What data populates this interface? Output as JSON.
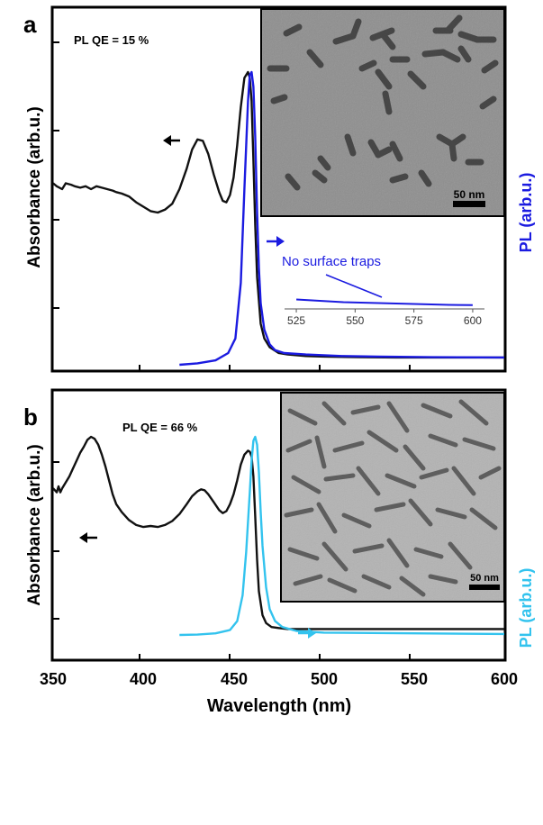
{
  "figure": {
    "xlabel": "Wavelength (nm)",
    "x_ticks": [
      "350",
      "400",
      "450",
      "500",
      "550",
      "600"
    ]
  },
  "chart_data": [
    {
      "panel": "a",
      "type": "line",
      "annotation": "PL QE = 15 %",
      "ylabel_left": "Absorbance (arb.u.)",
      "ylabel_right": "PL (arb.u.)",
      "xlim": [
        350,
        600
      ],
      "colors": {
        "absorbance": "#111111",
        "pl": "#1b1be0"
      },
      "series": [
        {
          "name": "",
          "role": "absorbance",
          "points": [
            [
              350,
              0.62
            ],
            [
              352,
              0.61
            ],
            [
              355,
              0.6
            ],
            [
              357,
              0.62
            ],
            [
              360,
              0.615
            ],
            [
              362,
              0.61
            ],
            [
              365,
              0.605
            ],
            [
              368,
              0.61
            ],
            [
              371,
              0.6
            ],
            [
              374,
              0.61
            ],
            [
              377,
              0.605
            ],
            [
              380,
              0.6
            ],
            [
              383,
              0.595
            ],
            [
              385,
              0.59
            ],
            [
              388,
              0.585
            ],
            [
              392,
              0.575
            ],
            [
              396,
              0.555
            ],
            [
              400,
              0.54
            ],
            [
              404,
              0.525
            ],
            [
              408,
              0.52
            ],
            [
              412,
              0.53
            ],
            [
              416,
              0.55
            ],
            [
              420,
              0.6
            ],
            [
              424,
              0.67
            ],
            [
              427,
              0.735
            ],
            [
              430,
              0.77
            ],
            [
              433,
              0.765
            ],
            [
              436,
              0.72
            ],
            [
              439,
              0.65
            ],
            [
              442,
              0.59
            ],
            [
              444,
              0.56
            ],
            [
              446,
              0.555
            ],
            [
              448,
              0.58
            ],
            [
              450,
              0.64
            ],
            [
              452,
              0.75
            ],
            [
              454,
              0.88
            ],
            [
              456,
              0.98
            ],
            [
              458,
              1.0
            ],
            [
              459,
              0.98
            ],
            [
              460,
              0.9
            ],
            [
              461,
              0.7
            ],
            [
              462,
              0.48
            ],
            [
              463,
              0.3
            ],
            [
              465,
              0.14
            ],
            [
              467,
              0.09
            ],
            [
              470,
              0.06
            ],
            [
              475,
              0.04
            ],
            [
              480,
              0.035
            ],
            [
              490,
              0.03
            ],
            [
              500,
              0.028
            ],
            [
              520,
              0.026
            ],
            [
              540,
              0.025
            ],
            [
              560,
              0.025
            ],
            [
              580,
              0.025
            ],
            [
              600,
              0.025
            ]
          ]
        },
        {
          "name": "",
          "role": "pl",
          "points": [
            [
              420,
              0.0
            ],
            [
              430,
              0.005
            ],
            [
              440,
              0.015
            ],
            [
              447,
              0.04
            ],
            [
              451,
              0.09
            ],
            [
              454,
              0.28
            ],
            [
              456,
              0.6
            ],
            [
              458,
              0.9
            ],
            [
              459,
              0.99
            ],
            [
              460,
              1.0
            ],
            [
              461,
              0.95
            ],
            [
              462,
              0.78
            ],
            [
              463,
              0.52
            ],
            [
              464,
              0.33
            ],
            [
              465,
              0.21
            ],
            [
              467,
              0.12
            ],
            [
              470,
              0.07
            ],
            [
              473,
              0.05
            ],
            [
              478,
              0.04
            ],
            [
              490,
              0.035
            ],
            [
              510,
              0.03
            ],
            [
              530,
              0.028
            ],
            [
              560,
              0.026
            ],
            [
              600,
              0.025
            ]
          ]
        }
      ],
      "inset_annotation": "No surface traps",
      "inset_plot": {
        "x_ticks": [
          "525",
          "550",
          "575",
          "600"
        ],
        "xlim": [
          520,
          605
        ],
        "series": [
          {
            "name": "",
            "points": [
              [
                525,
                0.85
              ],
              [
                535,
                0.7
              ],
              [
                545,
                0.55
              ],
              [
                560,
                0.45
              ],
              [
                575,
                0.35
              ],
              [
                590,
                0.25
              ],
              [
                600,
                0.22
              ]
            ]
          }
        ]
      },
      "inset_image": {
        "scale_bar": "50 nm"
      }
    },
    {
      "panel": "b",
      "type": "line",
      "annotation": "PL QE = 66 %",
      "ylabel_left": "Absorbance (arb.u.)",
      "ylabel_right": "PL (arb.u.)",
      "xlim": [
        350,
        600
      ],
      "colors": {
        "absorbance": "#111111",
        "pl": "#33c3ee"
      },
      "series": [
        {
          "name": "",
          "role": "absorbance",
          "points": [
            [
              350,
              0.74
            ],
            [
              352,
              0.72
            ],
            [
              353,
              0.75
            ],
            [
              354,
              0.72
            ],
            [
              355,
              0.74
            ],
            [
              357,
              0.77
            ],
            [
              359,
              0.8
            ],
            [
              361,
              0.84
            ],
            [
              363,
              0.88
            ],
            [
              365,
              0.92
            ],
            [
              367,
              0.95
            ],
            [
              369,
              0.985
            ],
            [
              371,
              1.0
            ],
            [
              373,
              0.99
            ],
            [
              375,
              0.96
            ],
            [
              377,
              0.91
            ],
            [
              379,
              0.85
            ],
            [
              381,
              0.78
            ],
            [
              383,
              0.71
            ],
            [
              385,
              0.66
            ],
            [
              388,
              0.62
            ],
            [
              392,
              0.58
            ],
            [
              396,
              0.555
            ],
            [
              400,
              0.545
            ],
            [
              404,
              0.55
            ],
            [
              408,
              0.545
            ],
            [
              412,
              0.555
            ],
            [
              416,
              0.575
            ],
            [
              420,
              0.61
            ],
            [
              424,
              0.66
            ],
            [
              427,
              0.7
            ],
            [
              430,
              0.725
            ],
            [
              432,
              0.735
            ],
            [
              434,
              0.73
            ],
            [
              436,
              0.71
            ],
            [
              439,
              0.67
            ],
            [
              442,
              0.63
            ],
            [
              444,
              0.615
            ],
            [
              446,
              0.625
            ],
            [
              448,
              0.66
            ],
            [
              450,
              0.71
            ],
            [
              452,
              0.78
            ],
            [
              454,
              0.86
            ],
            [
              456,
              0.91
            ],
            [
              458,
              0.93
            ],
            [
              459,
              0.925
            ],
            [
              460,
              0.9
            ],
            [
              461,
              0.8
            ],
            [
              462,
              0.6
            ],
            [
              463,
              0.38
            ],
            [
              464,
              0.22
            ],
            [
              466,
              0.1
            ],
            [
              468,
              0.06
            ],
            [
              471,
              0.04
            ],
            [
              475,
              0.035
            ],
            [
              480,
              0.03
            ],
            [
              500,
              0.03
            ],
            [
              550,
              0.03
            ],
            [
              600,
              0.03
            ]
          ]
        },
        {
          "name": "",
          "role": "pl",
          "points": [
            [
              420,
              0.0
            ],
            [
              430,
              0.002
            ],
            [
              440,
              0.008
            ],
            [
              448,
              0.025
            ],
            [
              452,
              0.07
            ],
            [
              455,
              0.2
            ],
            [
              457,
              0.42
            ],
            [
              459,
              0.72
            ],
            [
              460,
              0.88
            ],
            [
              461,
              0.98
            ],
            [
              462,
              1.0
            ],
            [
              463,
              0.96
            ],
            [
              464,
              0.82
            ],
            [
              465,
              0.62
            ],
            [
              466,
              0.45
            ],
            [
              468,
              0.24
            ],
            [
              470,
              0.13
            ],
            [
              473,
              0.07
            ],
            [
              477,
              0.04
            ],
            [
              485,
              0.02
            ],
            [
              500,
              0.012
            ],
            [
              550,
              0.008
            ],
            [
              600,
              0.005
            ]
          ]
        }
      ],
      "inset_image": {
        "scale_bar": "50 nm"
      }
    }
  ]
}
